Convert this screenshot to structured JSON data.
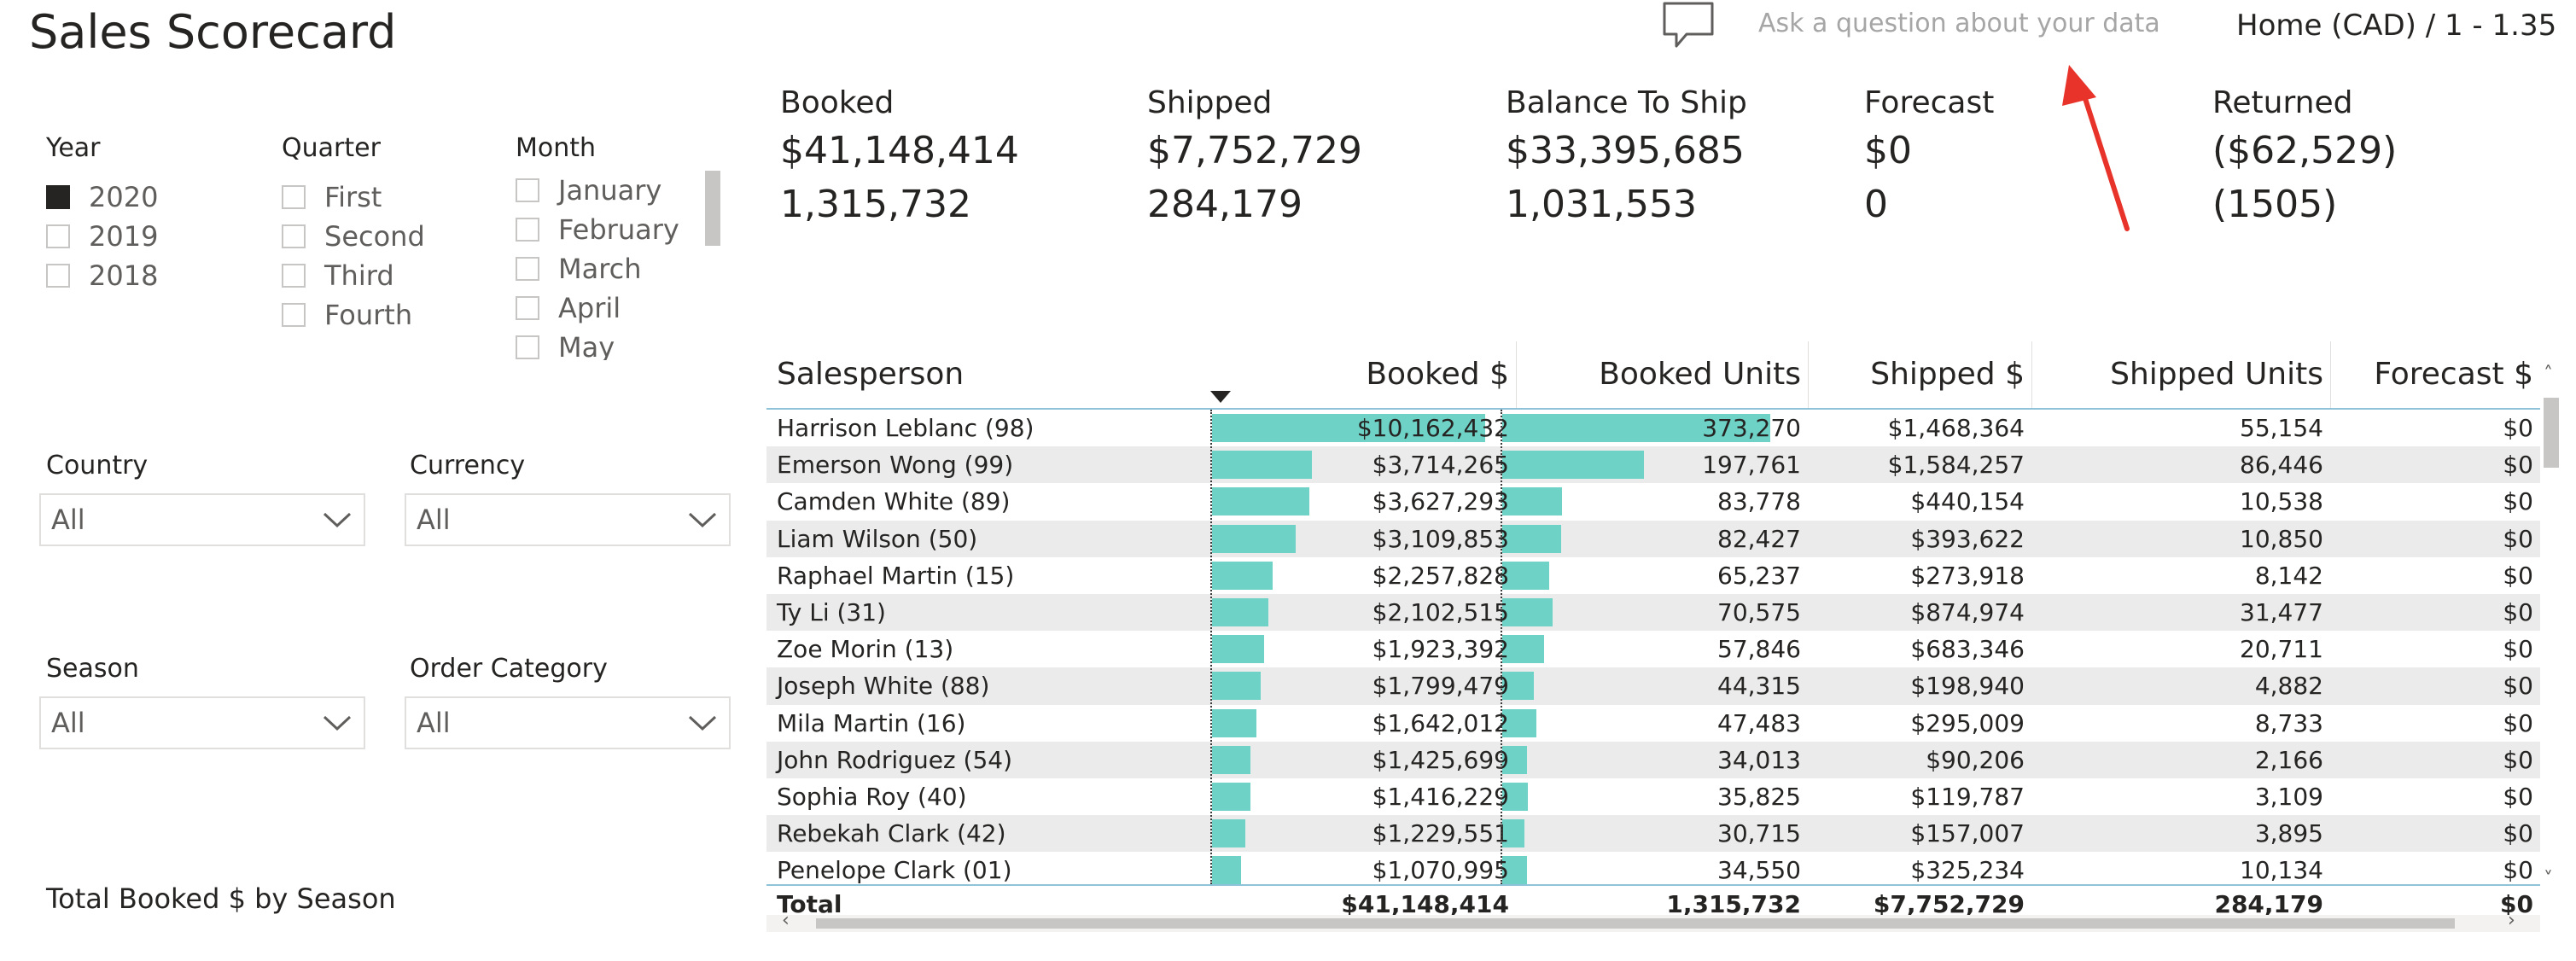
{
  "report": {
    "title": "Sales Scorecard",
    "qna_placeholder": "Ask a question about your data",
    "page_info": "Home (CAD) / 1 - 1.35"
  },
  "slicers": {
    "year": {
      "title": "Year",
      "items": [
        {
          "label": "2020",
          "checked": true
        },
        {
          "label": "2019",
          "checked": false
        },
        {
          "label": "2018",
          "checked": false
        }
      ]
    },
    "quarter": {
      "title": "Quarter",
      "items": [
        {
          "label": "First",
          "checked": false
        },
        {
          "label": "Second",
          "checked": false
        },
        {
          "label": "Third",
          "checked": false
        },
        {
          "label": "Fourth",
          "checked": false
        }
      ]
    },
    "month": {
      "title": "Month",
      "items": [
        {
          "label": "January",
          "checked": false
        },
        {
          "label": "February",
          "checked": false
        },
        {
          "label": "March",
          "checked": false
        },
        {
          "label": "April",
          "checked": false
        },
        {
          "label": "May",
          "checked": false
        }
      ]
    },
    "country": {
      "title": "Country",
      "value": "All"
    },
    "currency": {
      "title": "Currency",
      "value": "All"
    },
    "season": {
      "title": "Season",
      "value": "All"
    },
    "order_category": {
      "title": "Order Category",
      "value": "All"
    }
  },
  "chart_title": "Total Booked $ by Season",
  "kpis": [
    {
      "label": "Booked",
      "amount": "$41,148,414",
      "units": "1,315,732"
    },
    {
      "label": "Shipped",
      "amount": "$7,752,729",
      "units": "284,179"
    },
    {
      "label": "Balance To Ship",
      "amount": "$33,395,685",
      "units": "1,031,553"
    },
    {
      "label": "Forecast",
      "amount": "$0",
      "units": "0"
    },
    {
      "label": "Returned",
      "amount": "($62,529)",
      "units": "(1505)"
    }
  ],
  "table": {
    "columns": [
      "Salesperson",
      "Booked $",
      "Booked Units",
      "Shipped $",
      "Shipped Units",
      "Forecast $"
    ],
    "rows": [
      {
        "name": "Harrison Leblanc (98)",
        "booked": "$10,162,432",
        "booked_val": 10162432,
        "units": "373,270",
        "units_val": 373270,
        "shipped": "$1,468,364",
        "shipped_units": "55,154",
        "forecast": "$0"
      },
      {
        "name": "Emerson Wong (99)",
        "booked": "$3,714,265",
        "booked_val": 3714265,
        "units": "197,761",
        "units_val": 197761,
        "shipped": "$1,584,257",
        "shipped_units": "86,446",
        "forecast": "$0"
      },
      {
        "name": "Camden White (89)",
        "booked": "$3,627,293",
        "booked_val": 3627293,
        "units": "83,778",
        "units_val": 83778,
        "shipped": "$440,154",
        "shipped_units": "10,538",
        "forecast": "$0"
      },
      {
        "name": "Liam Wilson (50)",
        "booked": "$3,109,853",
        "booked_val": 3109853,
        "units": "82,427",
        "units_val": 82427,
        "shipped": "$393,622",
        "shipped_units": "10,850",
        "forecast": "$0"
      },
      {
        "name": "Raphael Martin (15)",
        "booked": "$2,257,828",
        "booked_val": 2257828,
        "units": "65,237",
        "units_val": 65237,
        "shipped": "$273,918",
        "shipped_units": "8,142",
        "forecast": "$0"
      },
      {
        "name": "Ty Li (31)",
        "booked": "$2,102,515",
        "booked_val": 2102515,
        "units": "70,575",
        "units_val": 70575,
        "shipped": "$874,974",
        "shipped_units": "31,477",
        "forecast": "$0"
      },
      {
        "name": "Zoe Morin (13)",
        "booked": "$1,923,392",
        "booked_val": 1923392,
        "units": "57,846",
        "units_val": 57846,
        "shipped": "$683,346",
        "shipped_units": "20,711",
        "forecast": "$0"
      },
      {
        "name": "Joseph White (88)",
        "booked": "$1,799,479",
        "booked_val": 1799479,
        "units": "44,315",
        "units_val": 44315,
        "shipped": "$198,940",
        "shipped_units": "4,882",
        "forecast": "$0"
      },
      {
        "name": "Mila Martin (16)",
        "booked": "$1,642,012",
        "booked_val": 1642012,
        "units": "47,483",
        "units_val": 47483,
        "shipped": "$295,009",
        "shipped_units": "8,733",
        "forecast": "$0"
      },
      {
        "name": "John Rodriguez (54)",
        "booked": "$1,425,699",
        "booked_val": 1425699,
        "units": "34,013",
        "units_val": 34013,
        "shipped": "$90,206",
        "shipped_units": "2,166",
        "forecast": "$0"
      },
      {
        "name": "Sophia Roy (40)",
        "booked": "$1,416,229",
        "booked_val": 1416229,
        "units": "35,825",
        "units_val": 35825,
        "shipped": "$119,787",
        "shipped_units": "3,109",
        "forecast": "$0"
      },
      {
        "name": "Rebekah Clark (42)",
        "booked": "$1,229,551",
        "booked_val": 1229551,
        "units": "30,715",
        "units_val": 30715,
        "shipped": "$157,007",
        "shipped_units": "3,895",
        "forecast": "$0"
      },
      {
        "name": "Penelope Clark (01)",
        "booked": "$1,070,995",
        "booked_val": 1070995,
        "units": "34,550",
        "units_val": 34550,
        "shipped": "$325,234",
        "shipped_units": "10,134",
        "forecast": "$0"
      }
    ],
    "total": {
      "label": "Total",
      "booked": "$41,148,414",
      "units": "1,315,732",
      "shipped": "$7,752,729",
      "shipped_units": "284,179",
      "forecast": "$0"
    }
  },
  "colors": {
    "bar": "#6ed3c6",
    "header_line": "#8fc3d9",
    "alt_row": "#ebebeb",
    "annotation_arrow": "#e8332a"
  },
  "icons": {
    "qna": "speech-bubble-icon",
    "dropdown": "chevron-down-icon",
    "sort": "sort-descending-icon"
  }
}
